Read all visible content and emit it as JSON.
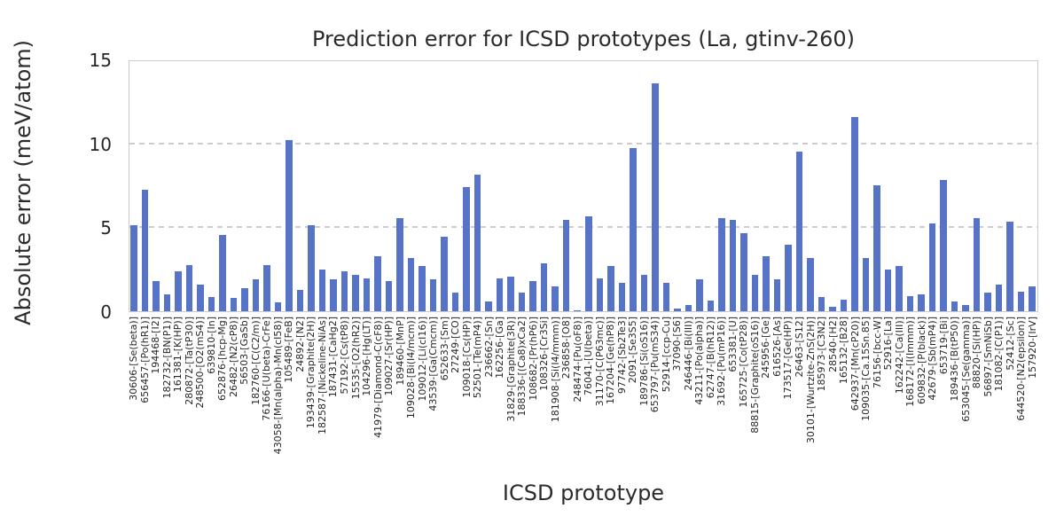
{
  "title": "Prediction error for ICSD prototypes (La, gtinv-260)",
  "chart_data": {
    "type": "bar",
    "title": "Prediction error for ICSD prototypes (La, gtinv-260)",
    "xlabel": "ICSD prototype",
    "ylabel": "Absolute error (meV/atom)",
    "ylim": [
      0,
      15
    ],
    "yticks": [
      0,
      5,
      10,
      15
    ],
    "grid": "horizontal-dashed",
    "legend": "none",
    "bar_color": "#5673c8",
    "grid_color": "#cccccc",
    "text_color": "#262626",
    "categories": [
      "30606-[Se(beta)]",
      "656457-[Po(hR1)]",
      "194468-[I2]",
      "182732-[BN(P1)]",
      "161381-[K(HP)]",
      "280872-[Ta(tP30)]",
      "248500-[O2(mS4)]",
      "639810-[In]",
      "652876-[hcp-Mg]",
      "26482-[N2(cP8)]",
      "56503-[GaSb]",
      "182760-[C(C2/m)]",
      "76166-[U(beta)-CrFe]",
      "43058-[Mn(alpha)-Mn(cI58)]",
      "105489-[FeB]",
      "24892-[N2]",
      "193439-[Graphite(2H)]",
      "182587-[Nickeline-NiAs]",
      "187431-[CaHg2]",
      "57192-[Cs(tP8)]",
      "15535-[O2(hR2)]",
      "104296-[Hg(LT)]",
      "41979-[Diamond-C(cF8)]",
      "109027-[Sr(HP)]",
      "189460-[MnP]",
      "109028-[Bi(I4/mcm)]",
      "109012-[Li(cI16)]",
      "43539-[Ga(Cmcm)]",
      "652633-[Sm]",
      "27249-[CO]",
      "109018-[Cs(HP)]",
      "52501-[Te(mP4)]",
      "236662-[Sn]",
      "162256-[Ga]",
      "31829-[Graphite(3R)]",
      "188336-[(Ca8)xCa2]",
      "108682-[Pr(hP6)]",
      "108326-[Cr3Si]",
      "181908-[Si(I4/mmm)]",
      "236858-[O8]",
      "248474-[Pu(oF8)]",
      "76041-[U(beta)]",
      "31170-[C(P63mc)]",
      "167204-[Ge(hP8)]",
      "97742-[Sb2Te3]",
      "2091-[Se3S5]",
      "189786-[Si(oS16)]",
      "653797-[Pu(mS34)]",
      "52914-[ccp-Cu]",
      "37090-[S6]",
      "246446-[Bi(III)]",
      "43211-[Po(alpha)]",
      "62747-[B(hR12)]",
      "31692-[Pu(mP16)]",
      "653381-[U]",
      "165725-[Co(tP28)]",
      "88815-[Graphite(oS16)]",
      "245956-[Ge]",
      "616526-[As]",
      "173517-[Ge(HP)]",
      "26463-[S12]",
      "30101-[Wurtzite-ZnS(2H)]",
      "185973-[C3N2]",
      "28540-[H2]",
      "165132-[B28]",
      "642937-[Mn(cP20)]",
      "109035-[Ca.15Sn.85]",
      "76156-[bcc-W]",
      "52916-[La]",
      "162242-[Ca(III)]",
      "168172-[I(Immm)]",
      "609832-[P(black)]",
      "42679-[Sb(mP4)]",
      "653719-[Bi]",
      "189436-[B(tP50)]",
      "653045-[Se(gamma)]",
      "88820-[Si(HP)]",
      "56897-[SmNiSb]",
      "181082-[C(P1)]",
      "52412-[Sc]",
      "644520-[N2(epsilon)]",
      "157920-[IrV]"
    ],
    "values": [
      5.2,
      7.3,
      1.8,
      1.0,
      2.4,
      2.8,
      1.6,
      0.85,
      4.6,
      0.8,
      1.4,
      1.9,
      2.8,
      0.55,
      10.3,
      1.3,
      5.2,
      2.5,
      1.9,
      2.4,
      2.2,
      2.0,
      3.3,
      1.8,
      5.6,
      3.2,
      2.7,
      1.9,
      4.5,
      1.1,
      7.5,
      8.2,
      0.6,
      2.0,
      2.1,
      1.1,
      1.8,
      2.9,
      1.5,
      5.5,
      0.05,
      5.7,
      2.0,
      2.7,
      1.7,
      9.8,
      2.2,
      13.7,
      1.7,
      0.15,
      0.35,
      1.9,
      0.65,
      5.6,
      5.5,
      4.7,
      2.2,
      3.3,
      1.9,
      4.0,
      9.6,
      3.2,
      0.85,
      0.25,
      0.7,
      11.7,
      3.2,
      7.6,
      2.5,
      2.7,
      0.9,
      1.0,
      5.3,
      7.9,
      0.6,
      0.4,
      5.6,
      1.1,
      1.6,
      5.4,
      1.2,
      1.5
    ]
  }
}
